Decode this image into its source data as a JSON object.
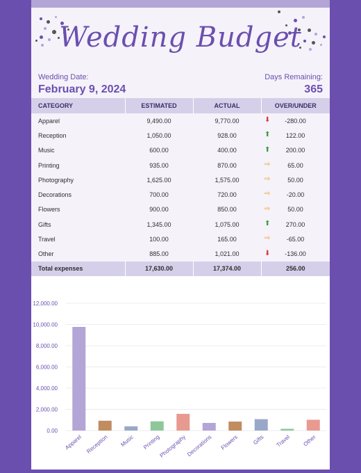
{
  "header": {
    "title": "Wedding Budget"
  },
  "info": {
    "wedding_date_label": "Wedding Date:",
    "wedding_date": "February 9, 2024",
    "days_remaining_label": "Days Remaining:",
    "days_remaining": "365"
  },
  "table": {
    "headers": [
      "CATEGORY",
      "ESTIMATED",
      "ACTUAL",
      "OVER/UNDER"
    ],
    "rows": [
      {
        "category": "Apparel",
        "estimated": "9,490.00",
        "actual": "9,770.00",
        "over_under": "-280.00",
        "arrow": "down"
      },
      {
        "category": "Reception",
        "estimated": "1,050.00",
        "actual": "928.00",
        "over_under": "122.00",
        "arrow": "up"
      },
      {
        "category": "Music",
        "estimated": "600.00",
        "actual": "400.00",
        "over_under": "200.00",
        "arrow": "up"
      },
      {
        "category": "Printing",
        "estimated": "935.00",
        "actual": "870.00",
        "over_under": "65.00",
        "arrow": "right"
      },
      {
        "category": "Photography",
        "estimated": "1,625.00",
        "actual": "1,575.00",
        "over_under": "50.00",
        "arrow": "right"
      },
      {
        "category": "Decorations",
        "estimated": "700.00",
        "actual": "720.00",
        "over_under": "-20.00",
        "arrow": "right"
      },
      {
        "category": "Flowers",
        "estimated": "900.00",
        "actual": "850.00",
        "over_under": "50.00",
        "arrow": "right"
      },
      {
        "category": "Gifts",
        "estimated": "1,345.00",
        "actual": "1,075.00",
        "over_under": "270.00",
        "arrow": "up"
      },
      {
        "category": "Travel",
        "estimated": "100.00",
        "actual": "165.00",
        "over_under": "-65.00",
        "arrow": "right"
      },
      {
        "category": "Other",
        "estimated": "885.00",
        "actual": "1,021.00",
        "over_under": "-136.00",
        "arrow": "down"
      }
    ],
    "total": {
      "label": "Total expenses",
      "estimated": "17,630.00",
      "actual": "17,374.00",
      "over_under": "256.00"
    }
  },
  "colors": {
    "accent": "#6b4fae",
    "arrow_up": "#3b9b3b",
    "arrow_down": "#d83a3a",
    "arrow_right": "#f0a020"
  },
  "chart_data": {
    "type": "bar",
    "categories": [
      "Apparel",
      "Reception",
      "Music",
      "Printing",
      "Photography",
      "Decorations",
      "Flowers",
      "Gifts",
      "Travel",
      "Other"
    ],
    "values": [
      9770,
      928,
      400,
      870,
      1575,
      720,
      850,
      1075,
      165,
      1021
    ],
    "colors": [
      "#b3a5d6",
      "#c08c60",
      "#9aa8c8",
      "#8ec79a",
      "#e89a90",
      "#b3a5d6",
      "#c08c60",
      "#9aa8c8",
      "#8ec79a",
      "#e89a90"
    ],
    "ylim": [
      0,
      12000
    ],
    "yticks": [
      "0.00",
      "2,000.00",
      "4,000.00",
      "6,000.00",
      "8,000.00",
      "10,000.00",
      "12,000.00"
    ],
    "grid": true,
    "legend": "none"
  }
}
